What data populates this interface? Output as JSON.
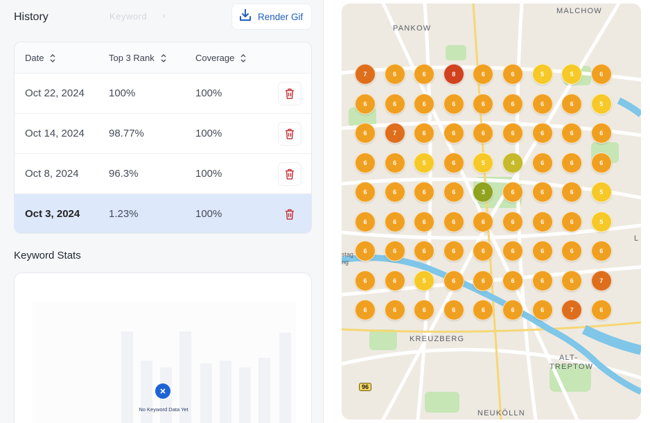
{
  "history": {
    "title": "History",
    "faded_tab": "Keyword",
    "render_button": "Render Gif",
    "columns": [
      "Date",
      "Top 3 Rank",
      "Coverage"
    ],
    "rows": [
      {
        "date": "Oct 22, 2024",
        "top3": "100%",
        "coverage": "100%",
        "selected": false
      },
      {
        "date": "Oct 14, 2024",
        "top3": "98.77%",
        "coverage": "100%",
        "selected": false
      },
      {
        "date": "Oct 8, 2024",
        "top3": "96.3%",
        "coverage": "100%",
        "selected": false
      },
      {
        "date": "Oct 3, 2024",
        "top3": "1.23%",
        "coverage": "100%",
        "selected": true
      }
    ]
  },
  "keyword_stats": {
    "title": "Keyword Stats",
    "empty_text": "No Keyword Data Yet"
  },
  "map": {
    "labels": {
      "pankow": "PANKOW",
      "malchow": "MALCHOW",
      "kreuzberg": "KREUZBERG",
      "alt_treptow_1": "ALT-",
      "alt_treptow_2": "TREPTOW",
      "neukolln": "NEUKÖLLN",
      "edge_stag": "stag",
      "edge_ng": "ng",
      "edge_l": "L",
      "road": "96"
    },
    "grid": [
      [
        "7",
        "6",
        "6",
        "8",
        "6",
        "6",
        "5",
        "5",
        "6"
      ],
      [
        "6",
        "6",
        "6",
        "6",
        "6",
        "6",
        "6",
        "6",
        "5"
      ],
      [
        "6",
        "7",
        "6",
        "6",
        "6",
        "6",
        "6",
        "6",
        "6"
      ],
      [
        "6",
        "6",
        "5",
        "6",
        "5",
        "4",
        "6",
        "6",
        "6"
      ],
      [
        "6",
        "6",
        "6",
        "6",
        "3",
        "6",
        "6",
        "6",
        "5"
      ],
      [
        "6",
        "6",
        "6",
        "6",
        "6",
        "6",
        "6",
        "6",
        "5"
      ],
      [
        "6",
        "6",
        "6",
        "6",
        "6",
        "6",
        "6",
        "6",
        "6"
      ],
      [
        "6",
        "6",
        "5",
        "6",
        "6",
        "6",
        "6",
        "6",
        "7"
      ],
      [
        "6",
        "6",
        "6",
        "6",
        "6",
        "6",
        "6",
        "7",
        "6"
      ]
    ],
    "rank_colors": {
      "3": "#8fa31e",
      "4": "#c6b92a",
      "5": "#f6c928",
      "6": "#f0a020",
      "7": "#de6e1c",
      "8": "#d1421e"
    }
  }
}
